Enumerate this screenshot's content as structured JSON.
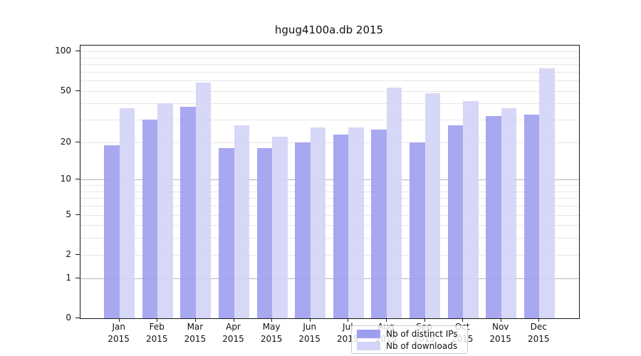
{
  "chart_data": {
    "type": "bar",
    "title": "hgug4100a.db 2015",
    "categories": [
      "Jan",
      "Feb",
      "Mar",
      "Apr",
      "May",
      "Jun",
      "Jul",
      "Aug",
      "Sep",
      "Oct",
      "Nov",
      "Dec"
    ],
    "year": "2015",
    "series": [
      {
        "name": "Nb of distinct IPs",
        "color": "#9e9eef",
        "values": [
          19,
          30,
          38,
          18,
          18,
          20,
          23,
          25,
          20,
          27,
          32,
          33
        ]
      },
      {
        "name": "Nb of downloads",
        "color": "#d3d3f7",
        "values": [
          37,
          40,
          58,
          27,
          22,
          26,
          26,
          53,
          48,
          42,
          37,
          74
        ]
      }
    ],
    "yscale": "log10(1+value)",
    "ylim": [
      0,
      110
    ],
    "y_ticks": [
      0,
      1,
      2,
      5,
      10,
      20,
      50,
      100
    ],
    "y_tick_labels": [
      "0",
      "1",
      "2",
      "5",
      "10",
      "20",
      "50",
      "100"
    ],
    "gridlines": {
      "major": [
        1,
        10
      ],
      "minor": [
        2,
        3,
        4,
        5,
        6,
        7,
        8,
        9,
        20,
        30,
        40,
        50,
        60,
        70,
        80,
        90,
        100
      ]
    },
    "grid": "horizontal",
    "legend_position": "lower center",
    "colors": {
      "spine": "#1a1a1a",
      "major_grid": "#b4b4b4",
      "minor_grid": "#e7e7e7",
      "legend_border": "#cccccc"
    }
  }
}
